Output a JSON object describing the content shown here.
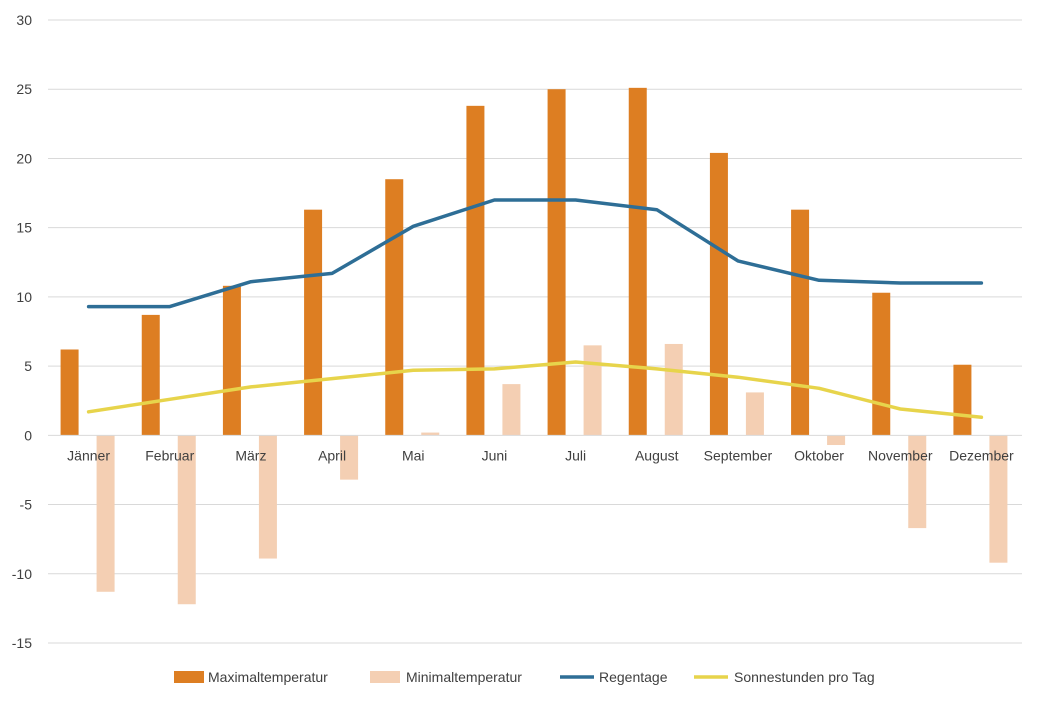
{
  "chart_data": {
    "type": "bar",
    "categories": [
      "Jänner",
      "Februar",
      "März",
      "April",
      "Mai",
      "Juni",
      "Juli",
      "August",
      "September",
      "Oktober",
      "November",
      "Dezember"
    ],
    "series": [
      {
        "name": "Maximaltemperatur",
        "kind": "bar",
        "color": "#dd7e22",
        "values": [
          6.2,
          8.7,
          10.8,
          16.3,
          18.5,
          23.8,
          25.0,
          25.1,
          20.4,
          16.3,
          10.3,
          5.1
        ]
      },
      {
        "name": "Minimaltemperatur",
        "kind": "bar",
        "color": "#f4cfb3",
        "values": [
          -11.3,
          -12.2,
          -8.9,
          -3.2,
          0.2,
          3.7,
          6.5,
          6.6,
          3.1,
          -0.7,
          -6.7,
          -9.2
        ]
      },
      {
        "name": "Regentage",
        "kind": "line",
        "color": "#2e6e96",
        "values": [
          9.3,
          9.3,
          11.1,
          11.7,
          15.1,
          17.0,
          17.0,
          16.3,
          12.6,
          11.2,
          11.0,
          11.0
        ]
      },
      {
        "name": "Sonnestunden pro Tag",
        "kind": "line",
        "color": "#e7d44b",
        "values": [
          1.7,
          2.6,
          3.5,
          4.1,
          4.7,
          4.8,
          5.3,
          4.8,
          4.2,
          3.4,
          1.9,
          1.3
        ]
      }
    ],
    "yticks": [
      "30",
      "25",
      "20",
      "15",
      "10",
      "5",
      "0",
      "-5",
      "-10",
      "-15"
    ],
    "ylim": [
      -15,
      30
    ],
    "ytick_step": 5,
    "grid": true,
    "legend": "bottom",
    "title": "",
    "xlabel": "",
    "ylabel": ""
  }
}
